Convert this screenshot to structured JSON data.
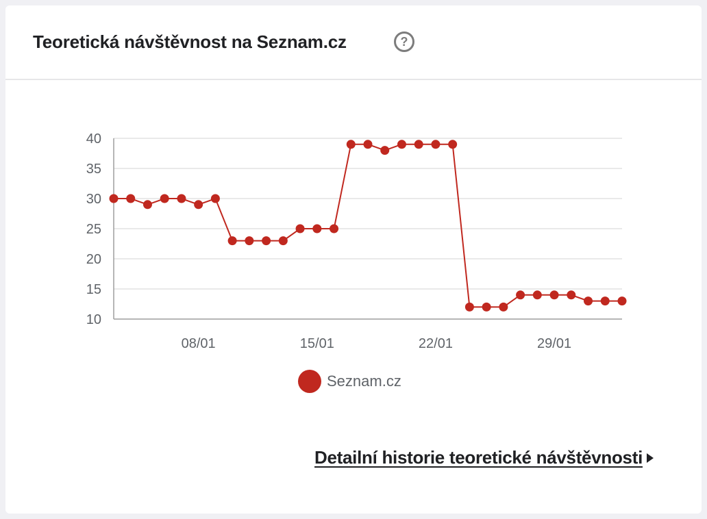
{
  "header": {
    "title": "Teoretická návštěvnost na Seznam.cz",
    "help_symbol": "?"
  },
  "chart_data": {
    "type": "line",
    "x": [
      "03/01",
      "04/01",
      "05/01",
      "06/01",
      "07/01",
      "08/01",
      "09/01",
      "10/01",
      "11/01",
      "12/01",
      "13/01",
      "14/01",
      "15/01",
      "16/01",
      "17/01",
      "18/01",
      "19/01",
      "20/01",
      "21/01",
      "22/01",
      "23/01",
      "24/01",
      "25/01",
      "26/01",
      "27/01",
      "28/01",
      "29/01",
      "30/01",
      "31/01",
      "01/02",
      "02/02"
    ],
    "x_tick_labels": [
      "08/01",
      "15/01",
      "22/01",
      "29/01"
    ],
    "series": [
      {
        "name": "Seznam.cz",
        "color": "#c0281f",
        "values": [
          30,
          30,
          29,
          30,
          30,
          29,
          30,
          23,
          23,
          23,
          23,
          25,
          25,
          25,
          39,
          39,
          38,
          39,
          39,
          39,
          39,
          12,
          12,
          12,
          14,
          14,
          14,
          14,
          13,
          13,
          13
        ]
      }
    ],
    "ylim": [
      10,
      40
    ],
    "y_ticks": [
      10,
      15,
      20,
      25,
      30,
      35,
      40
    ],
    "grid": true,
    "legend": "bottom"
  },
  "footer": {
    "link_label": "Detailní historie teoretické návštěvnosti"
  }
}
